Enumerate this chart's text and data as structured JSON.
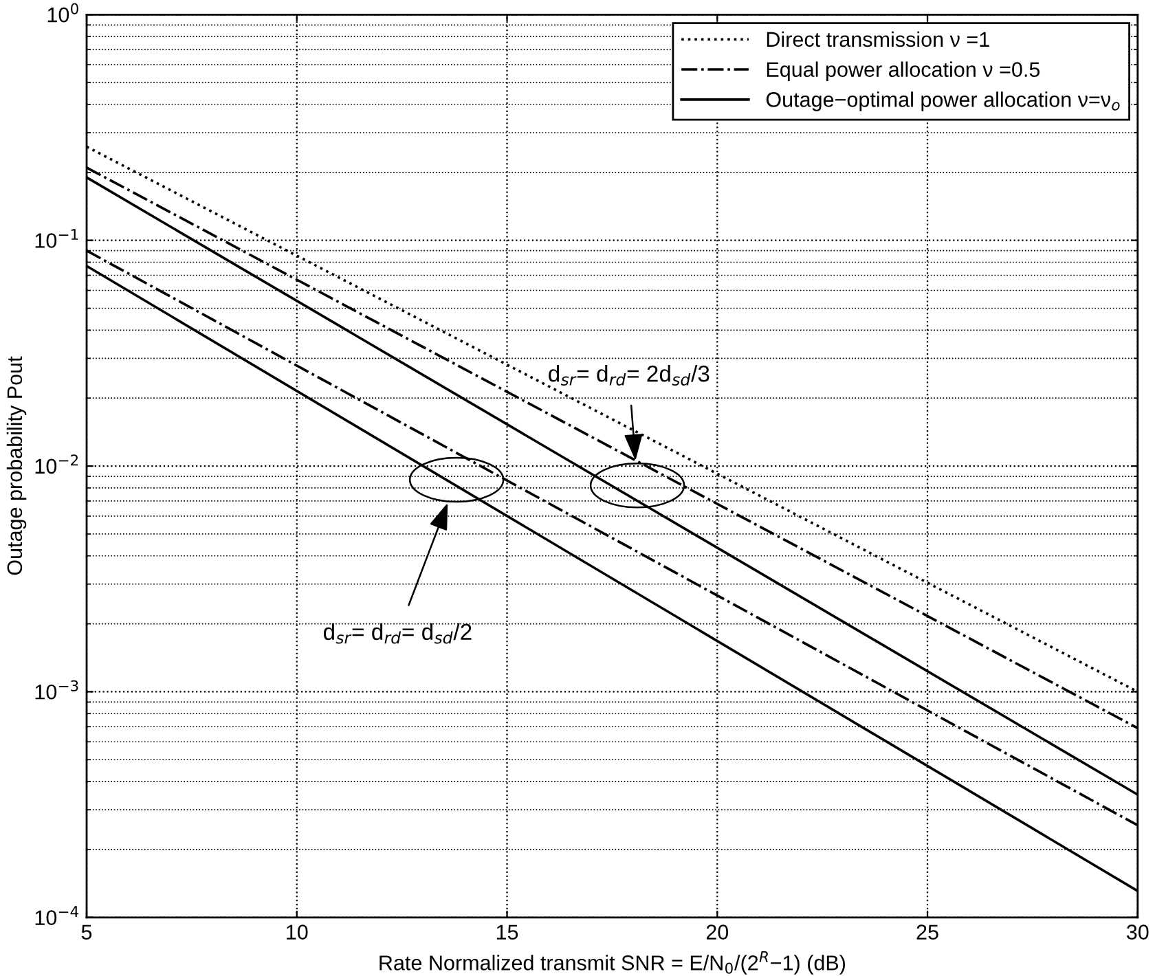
{
  "chart_data": {
    "type": "line",
    "xlabel": "Rate Normalized transmit SNR = E/N$_{0}$/(2$^{R}$−1) (dB)",
    "ylabel": "Outage probability Pout",
    "log": "y",
    "xlim": [
      5,
      30
    ],
    "ylim": [
      0.0001,
      1
    ],
    "xticks": [
      5,
      10,
      15,
      20,
      25,
      30
    ],
    "yticks": [
      {
        "value": 0.0001,
        "label": "10$^{−4}$"
      },
      {
        "value": 0.001,
        "label": "10$^{−3}$"
      },
      {
        "value": 0.01,
        "label": "10$^{−2}$"
      },
      {
        "value": 0.1,
        "label": "10$^{−1}$"
      },
      {
        "value": 1,
        "label": "10$^{0}$"
      }
    ],
    "grid": true,
    "legend": "top right",
    "x": [
      5,
      30
    ],
    "series": [
      {
        "name": "Direct transmission ν =1",
        "color": "#000000",
        "line_style": "dotted",
        "values": [
          0.26,
          0.001
        ]
      },
      {
        "name": "Equal power allocation ν =0.5",
        "color": "#000000",
        "line_style": "dashdot",
        "values": [
          0.21,
          0.00069
        ]
      },
      {
        "name": "Outage−optimal power allocation ν=ν$_{o}$",
        "color": "#000000",
        "line_style": "solid",
        "values": [
          0.19,
          0.00035
        ]
      },
      {
        "color": "#000000",
        "line_style": "dashdot",
        "values": [
          0.09,
          0.000256
        ]
      },
      {
        "color": "#000000",
        "line_style": "solid",
        "values": [
          0.077,
          0.000131
        ]
      }
    ],
    "annotations": [
      "d$_{sr}$= d$_{rd}$= 2d$_{sd}$/3",
      "d$_{sr}$= d$_{rd}$= d$_{sd}$/2"
    ]
  }
}
